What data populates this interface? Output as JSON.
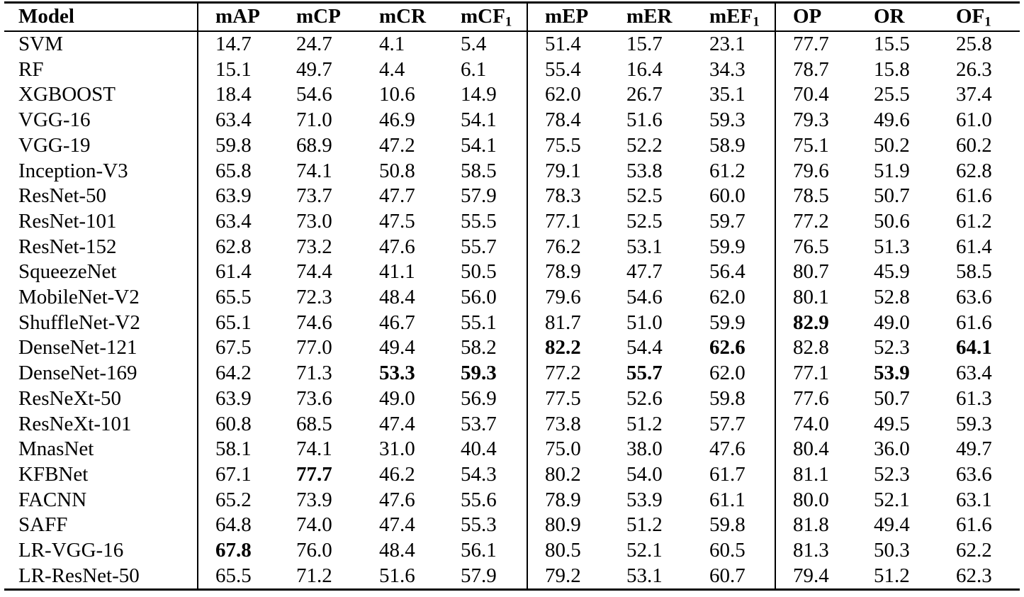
{
  "table": {
    "columns": [
      {
        "label": "Model",
        "sub": ""
      },
      {
        "label": "mAP",
        "sub": ""
      },
      {
        "label": "mCP",
        "sub": ""
      },
      {
        "label": "mCR",
        "sub": ""
      },
      {
        "label": "mCF",
        "sub": "1"
      },
      {
        "label": "mEP",
        "sub": ""
      },
      {
        "label": "mER",
        "sub": ""
      },
      {
        "label": "mEF",
        "sub": "1"
      },
      {
        "label": "OP",
        "sub": ""
      },
      {
        "label": "OR",
        "sub": ""
      },
      {
        "label": "OF",
        "sub": "1"
      }
    ],
    "rows": [
      {
        "model": "SVM",
        "values": [
          "14.7",
          "24.7",
          "4.1",
          "5.4",
          "51.4",
          "15.7",
          "23.1",
          "77.7",
          "15.5",
          "25.8"
        ],
        "bold": []
      },
      {
        "model": "RF",
        "values": [
          "15.1",
          "49.7",
          "4.4",
          "6.1",
          "55.4",
          "16.4",
          "34.3",
          "78.7",
          "15.8",
          "26.3"
        ],
        "bold": []
      },
      {
        "model": "XGBOOST",
        "values": [
          "18.4",
          "54.6",
          "10.6",
          "14.9",
          "62.0",
          "26.7",
          "35.1",
          "70.4",
          "25.5",
          "37.4"
        ],
        "bold": []
      },
      {
        "model": "VGG-16",
        "values": [
          "63.4",
          "71.0",
          "46.9",
          "54.1",
          "78.4",
          "51.6",
          "59.3",
          "79.3",
          "49.6",
          "61.0"
        ],
        "bold": []
      },
      {
        "model": "VGG-19",
        "values": [
          "59.8",
          "68.9",
          "47.2",
          "54.1",
          "75.5",
          "52.2",
          "58.9",
          "75.1",
          "50.2",
          "60.2"
        ],
        "bold": []
      },
      {
        "model": "Inception-V3",
        "values": [
          "65.8",
          "74.1",
          "50.8",
          "58.5",
          "79.1",
          "53.8",
          "61.2",
          "79.6",
          "51.9",
          "62.8"
        ],
        "bold": []
      },
      {
        "model": "ResNet-50",
        "values": [
          "63.9",
          "73.7",
          "47.7",
          "57.9",
          "78.3",
          "52.5",
          "60.0",
          "78.5",
          "50.7",
          "61.6"
        ],
        "bold": []
      },
      {
        "model": "ResNet-101",
        "values": [
          "63.4",
          "73.0",
          "47.5",
          "55.5",
          "77.1",
          "52.5",
          "59.7",
          "77.2",
          "50.6",
          "61.2"
        ],
        "bold": []
      },
      {
        "model": "ResNet-152",
        "values": [
          "62.8",
          "73.2",
          "47.6",
          "55.7",
          "76.2",
          "53.1",
          "59.9",
          "76.5",
          "51.3",
          "61.4"
        ],
        "bold": []
      },
      {
        "model": "SqueezeNet",
        "values": [
          "61.4",
          "74.4",
          "41.1",
          "50.5",
          "78.9",
          "47.7",
          "56.4",
          "80.7",
          "45.9",
          "58.5"
        ],
        "bold": []
      },
      {
        "model": "MobileNet-V2",
        "values": [
          "65.5",
          "72.3",
          "48.4",
          "56.0",
          "79.6",
          "54.6",
          "62.0",
          "80.1",
          "52.8",
          "63.6"
        ],
        "bold": []
      },
      {
        "model": "ShuffleNet-V2",
        "values": [
          "65.1",
          "74.6",
          "46.7",
          "55.1",
          "81.7",
          "51.0",
          "59.9",
          "82.9",
          "49.0",
          "61.6"
        ],
        "bold": [
          7
        ]
      },
      {
        "model": "DenseNet-121",
        "values": [
          "67.5",
          "77.0",
          "49.4",
          "58.2",
          "82.2",
          "54.4",
          "62.6",
          "82.8",
          "52.3",
          "64.1"
        ],
        "bold": [
          4,
          6,
          9
        ]
      },
      {
        "model": "DenseNet-169",
        "values": [
          "64.2",
          "71.3",
          "53.3",
          "59.3",
          "77.2",
          "55.7",
          "62.0",
          "77.1",
          "53.9",
          "63.4"
        ],
        "bold": [
          2,
          3,
          5,
          8
        ]
      },
      {
        "model": "ResNeXt-50",
        "values": [
          "63.9",
          "73.6",
          "49.0",
          "56.9",
          "77.5",
          "52.6",
          "59.8",
          "77.6",
          "50.7",
          "61.3"
        ],
        "bold": []
      },
      {
        "model": "ResNeXt-101",
        "values": [
          "60.8",
          "68.5",
          "47.4",
          "53.7",
          "73.8",
          "51.2",
          "57.7",
          "74.0",
          "49.5",
          "59.3"
        ],
        "bold": []
      },
      {
        "model": "MnasNet",
        "values": [
          "58.1",
          "74.1",
          "31.0",
          "40.4",
          "75.0",
          "38.0",
          "47.6",
          "80.4",
          "36.0",
          "49.7"
        ],
        "bold": []
      },
      {
        "model": "KFBNet",
        "values": [
          "67.1",
          "77.7",
          "46.2",
          "54.3",
          "80.2",
          "54.0",
          "61.7",
          "81.1",
          "52.3",
          "63.6"
        ],
        "bold": [
          1
        ]
      },
      {
        "model": "FACNN",
        "values": [
          "65.2",
          "73.9",
          "47.6",
          "55.6",
          "78.9",
          "53.9",
          "61.1",
          "80.0",
          "52.1",
          "63.1"
        ],
        "bold": []
      },
      {
        "model": "SAFF",
        "values": [
          "64.8",
          "74.0",
          "47.4",
          "55.3",
          "80.9",
          "51.2",
          "59.8",
          "81.8",
          "49.4",
          "61.6"
        ],
        "bold": []
      },
      {
        "model": "LR-VGG-16",
        "values": [
          "67.8",
          "76.0",
          "48.4",
          "56.1",
          "80.5",
          "52.1",
          "60.5",
          "81.3",
          "50.3",
          "62.2"
        ],
        "bold": [
          0
        ]
      },
      {
        "model": "LR-ResNet-50",
        "values": [
          "65.5",
          "71.2",
          "51.6",
          "57.9",
          "79.2",
          "53.1",
          "60.7",
          "79.4",
          "51.2",
          "62.3"
        ],
        "bold": []
      }
    ]
  }
}
